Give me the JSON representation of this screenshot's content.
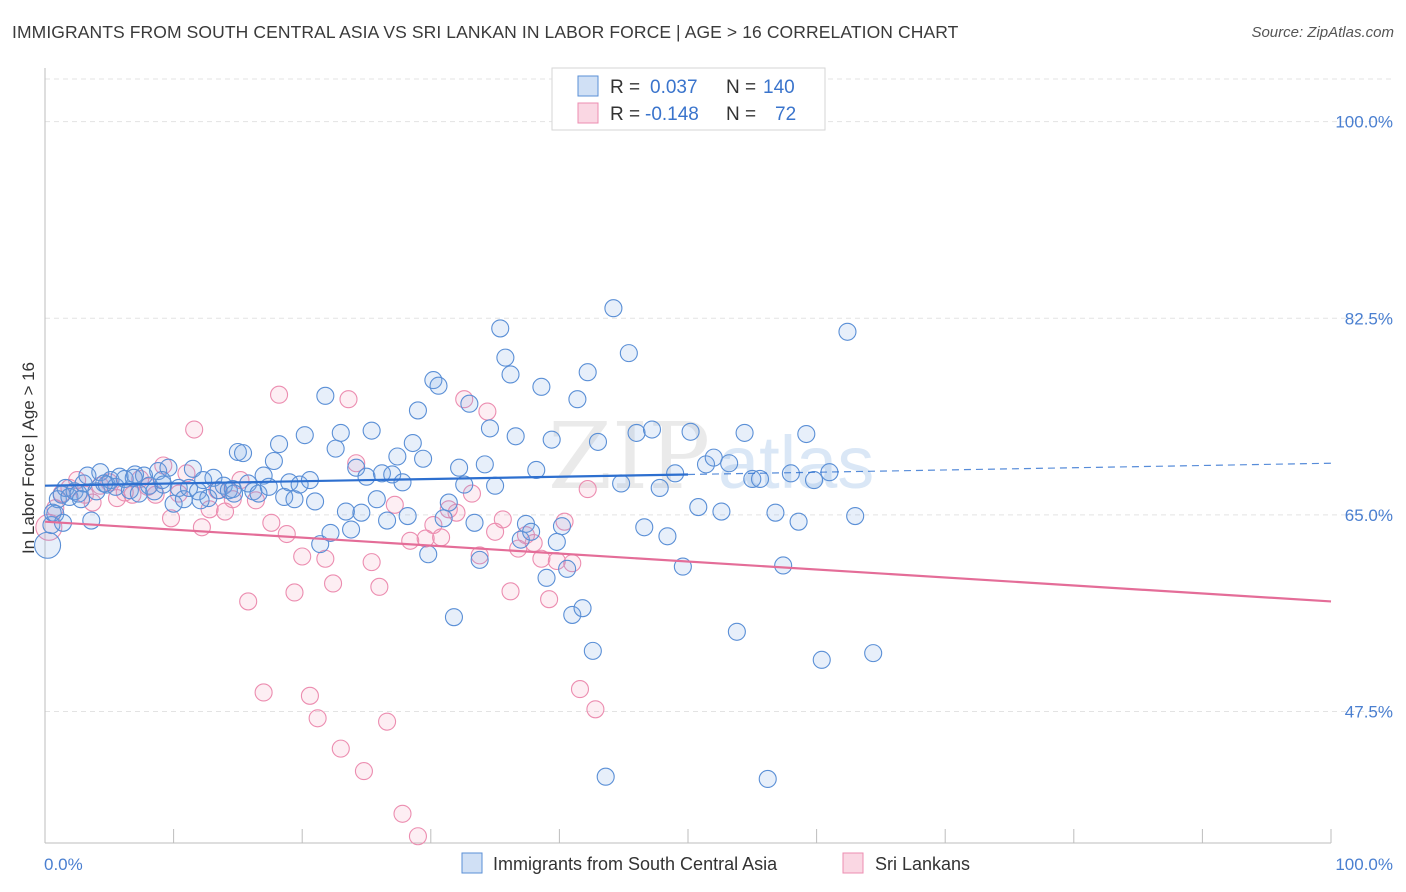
{
  "title": "IMMIGRANTS FROM SOUTH CENTRAL ASIA VS SRI LANKAN IN LABOR FORCE | AGE > 16 CORRELATION CHART",
  "source": "Source: ZipAtlas.com",
  "watermark": {
    "zip": "ZIP",
    "atlas": "atlas"
  },
  "colors": {
    "blue_fill": "rgba(120,165,225,0.18)",
    "blue_stroke": "#5a8fd6",
    "blue_line": "#2d6fcf",
    "pink_fill": "rgba(240,140,175,0.15)",
    "pink_stroke": "#ec8db0",
    "pink_line": "#e46d98",
    "tick_text": "#4a7fd0",
    "grid": "#e3e3e3"
  },
  "legend": {
    "rows": [
      {
        "r_label": "R =",
        "r_value": "0.037",
        "n_label": "N =",
        "n_value": "140",
        "color": "blue"
      },
      {
        "r_label": "R =",
        "r_value": "-0.148",
        "n_label": "N =",
        "n_value": "72",
        "color": "pink"
      }
    ]
  },
  "chart_data": {
    "type": "scatter",
    "title": "IMMIGRANTS FROM SOUTH CENTRAL ASIA VS SRI LANKAN IN LABOR FORCE | AGE > 16 CORRELATION CHART",
    "xlabel": "",
    "ylabel": "In Labor Force | Age > 16",
    "xlim": [
      0,
      100
    ],
    "ylim": [
      35.8,
      104.6
    ],
    "x_tick_labels": [
      "0.0%",
      "100.0%"
    ],
    "y_ticks": [
      47.5,
      65.0,
      82.5,
      100.0
    ],
    "y_tick_labels": [
      "47.5%",
      "65.0%",
      "82.5%",
      "100.0%"
    ],
    "grid": true,
    "legend_position": "top-center",
    "series": [
      {
        "name": "Immigrants from South Central Asia",
        "color": "blue",
        "trend": {
          "x": [
            0,
            50,
            100
          ],
          "y": [
            67.6,
            68.6,
            69.6
          ],
          "solid_until": 50
        },
        "points": [
          [
            0.2,
            62.3
          ],
          [
            0.5,
            64.1
          ],
          [
            0.8,
            65.1
          ],
          [
            1.0,
            66.4
          ],
          [
            1.3,
            66.8
          ],
          [
            1.6,
            67.4
          ],
          [
            1.9,
            66.6
          ],
          [
            2.3,
            67.1
          ],
          [
            2.6,
            66.9
          ],
          [
            3.0,
            67.8
          ],
          [
            3.3,
            68.5
          ],
          [
            3.6,
            64.5
          ],
          [
            4.0,
            67.1
          ],
          [
            4.3,
            68.8
          ],
          [
            4.8,
            67.7
          ],
          [
            5.1,
            68.1
          ],
          [
            5.5,
            67.5
          ],
          [
            5.8,
            68.4
          ],
          [
            6.2,
            68.2
          ],
          [
            6.6,
            67.2
          ],
          [
            7.0,
            68.6
          ],
          [
            7.3,
            66.9
          ],
          [
            7.7,
            68.5
          ],
          [
            8.1,
            67.6
          ],
          [
            8.5,
            67.1
          ],
          [
            8.8,
            68.9
          ],
          [
            9.2,
            67.7
          ],
          [
            9.6,
            69.2
          ],
          [
            10.0,
            66.0
          ],
          [
            10.4,
            67.4
          ],
          [
            10.8,
            66.4
          ],
          [
            11.2,
            67.4
          ],
          [
            11.5,
            69.1
          ],
          [
            11.9,
            67.1
          ],
          [
            12.3,
            68.1
          ],
          [
            12.7,
            66.5
          ],
          [
            13.1,
            68.3
          ],
          [
            13.5,
            67.2
          ],
          [
            13.9,
            67.6
          ],
          [
            14.3,
            67.2
          ],
          [
            14.6,
            67.3
          ],
          [
            15.0,
            70.6
          ],
          [
            15.4,
            70.5
          ],
          [
            15.8,
            67.8
          ],
          [
            16.2,
            67.1
          ],
          [
            16.6,
            66.9
          ],
          [
            17.0,
            68.5
          ],
          [
            17.4,
            67.5
          ],
          [
            17.8,
            69.8
          ],
          [
            18.2,
            71.3
          ],
          [
            18.6,
            66.6
          ],
          [
            19.0,
            67.9
          ],
          [
            19.4,
            66.4
          ],
          [
            19.8,
            67.7
          ],
          [
            20.2,
            72.1
          ],
          [
            20.6,
            68.1
          ],
          [
            21.0,
            66.2
          ],
          [
            21.4,
            62.4
          ],
          [
            21.8,
            75.6
          ],
          [
            22.2,
            63.4
          ],
          [
            22.6,
            70.9
          ],
          [
            23.0,
            72.3
          ],
          [
            23.4,
            65.3
          ],
          [
            23.8,
            63.7
          ],
          [
            24.2,
            69.2
          ],
          [
            24.6,
            65.2
          ],
          [
            25.0,
            68.4
          ],
          [
            25.4,
            72.5
          ],
          [
            25.8,
            66.4
          ],
          [
            26.2,
            68.7
          ],
          [
            26.6,
            64.5
          ],
          [
            27.0,
            68.6
          ],
          [
            27.4,
            70.2
          ],
          [
            27.8,
            67.9
          ],
          [
            28.2,
            64.9
          ],
          [
            28.6,
            71.4
          ],
          [
            29.0,
            74.3
          ],
          [
            29.4,
            70.0
          ],
          [
            29.8,
            61.5
          ],
          [
            30.2,
            77.0
          ],
          [
            30.6,
            76.5
          ],
          [
            31.0,
            64.7
          ],
          [
            31.4,
            66.1
          ],
          [
            31.8,
            55.9
          ],
          [
            32.2,
            69.2
          ],
          [
            32.6,
            67.7
          ],
          [
            33.0,
            74.9
          ],
          [
            33.4,
            64.3
          ],
          [
            33.8,
            61.0
          ],
          [
            34.2,
            69.5
          ],
          [
            34.6,
            72.7
          ],
          [
            35.0,
            67.6
          ],
          [
            35.4,
            81.6
          ],
          [
            35.8,
            79.0
          ],
          [
            36.2,
            77.5
          ],
          [
            36.6,
            72.0
          ],
          [
            37.0,
            62.8
          ],
          [
            37.4,
            64.2
          ],
          [
            37.8,
            63.5
          ],
          [
            38.2,
            69.0
          ],
          [
            38.6,
            76.4
          ],
          [
            39.0,
            59.4
          ],
          [
            39.4,
            71.7
          ],
          [
            39.8,
            62.6
          ],
          [
            40.2,
            64.0
          ],
          [
            40.6,
            60.2
          ],
          [
            41.0,
            56.1
          ],
          [
            41.4,
            75.3
          ],
          [
            41.8,
            56.7
          ],
          [
            42.2,
            77.7
          ],
          [
            42.6,
            52.9
          ],
          [
            43.0,
            71.5
          ],
          [
            43.6,
            41.7
          ],
          [
            44.2,
            83.4
          ],
          [
            44.8,
            67.8
          ],
          [
            45.4,
            79.4
          ],
          [
            46.0,
            72.3
          ],
          [
            46.6,
            63.9
          ],
          [
            47.2,
            72.6
          ],
          [
            47.8,
            67.4
          ],
          [
            48.4,
            63.1
          ],
          [
            49.0,
            68.7
          ],
          [
            49.6,
            60.4
          ],
          [
            50.2,
            72.4
          ],
          [
            50.8,
            65.7
          ],
          [
            51.4,
            69.5
          ],
          [
            52.0,
            70.1
          ],
          [
            52.6,
            65.3
          ],
          [
            53.2,
            69.6
          ],
          [
            53.8,
            54.6
          ],
          [
            54.4,
            72.3
          ],
          [
            55.0,
            68.2
          ],
          [
            55.6,
            68.2
          ],
          [
            56.2,
            41.5
          ],
          [
            56.8,
            65.2
          ],
          [
            57.4,
            60.5
          ],
          [
            58.0,
            68.7
          ],
          [
            58.6,
            64.4
          ],
          [
            59.2,
            72.2
          ],
          [
            59.8,
            68.1
          ],
          [
            60.4,
            52.1
          ],
          [
            61.0,
            68.8
          ],
          [
            62.4,
            81.3
          ],
          [
            63.0,
            64.9
          ],
          [
            64.4,
            52.7
          ],
          [
            0.6,
            65.2
          ],
          [
            1.4,
            64.3
          ],
          [
            2.8,
            66.4
          ],
          [
            4.6,
            67.8
          ],
          [
            6.9,
            68.3
          ],
          [
            9.1,
            68.1
          ],
          [
            12.1,
            66.3
          ],
          [
            14.7,
            66.9
          ]
        ]
      },
      {
        "name": "Sri Lankans",
        "color": "pink",
        "trend": {
          "x": [
            0,
            100
          ],
          "y": [
            64.4,
            57.3
          ],
          "solid_until": 100
        },
        "points": [
          [
            0.3,
            63.9
          ],
          [
            0.8,
            65.6
          ],
          [
            1.3,
            66.9
          ],
          [
            1.9,
            67.4
          ],
          [
            2.5,
            68.1
          ],
          [
            3.1,
            66.8
          ],
          [
            3.7,
            66.1
          ],
          [
            4.3,
            67.6
          ],
          [
            5.0,
            67.9
          ],
          [
            5.6,
            66.5
          ],
          [
            6.2,
            67.0
          ],
          [
            6.8,
            66.8
          ],
          [
            7.4,
            68.2
          ],
          [
            8.0,
            67.5
          ],
          [
            8.6,
            66.8
          ],
          [
            9.2,
            69.4
          ],
          [
            9.8,
            64.7
          ],
          [
            10.4,
            66.9
          ],
          [
            11.0,
            68.7
          ],
          [
            11.6,
            72.6
          ],
          [
            12.2,
            63.9
          ],
          [
            12.8,
            65.5
          ],
          [
            13.4,
            67.2
          ],
          [
            14.0,
            65.3
          ],
          [
            14.6,
            66.4
          ],
          [
            15.2,
            68.1
          ],
          [
            15.8,
            57.3
          ],
          [
            16.4,
            66.3
          ],
          [
            17.0,
            49.2
          ],
          [
            17.6,
            64.3
          ],
          [
            18.2,
            75.7
          ],
          [
            18.8,
            63.3
          ],
          [
            19.4,
            58.1
          ],
          [
            20.0,
            61.3
          ],
          [
            20.6,
            48.9
          ],
          [
            21.2,
            46.9
          ],
          [
            21.8,
            61.1
          ],
          [
            22.4,
            58.9
          ],
          [
            23.0,
            44.2
          ],
          [
            23.6,
            75.3
          ],
          [
            24.2,
            69.6
          ],
          [
            24.8,
            42.2
          ],
          [
            25.4,
            60.8
          ],
          [
            26.0,
            58.6
          ],
          [
            26.6,
            46.6
          ],
          [
            27.2,
            65.9
          ],
          [
            27.8,
            38.4
          ],
          [
            28.4,
            62.7
          ],
          [
            29.0,
            36.4
          ],
          [
            29.6,
            62.9
          ],
          [
            30.2,
            64.1
          ],
          [
            30.8,
            63.0
          ],
          [
            31.4,
            65.5
          ],
          [
            32.0,
            65.2
          ],
          [
            32.6,
            75.3
          ],
          [
            33.2,
            66.9
          ],
          [
            33.8,
            61.4
          ],
          [
            34.4,
            74.2
          ],
          [
            35.0,
            63.5
          ],
          [
            35.6,
            64.6
          ],
          [
            36.2,
            58.2
          ],
          [
            36.8,
            62.0
          ],
          [
            37.4,
            63.2
          ],
          [
            38.0,
            62.5
          ],
          [
            38.6,
            61.1
          ],
          [
            39.2,
            57.5
          ],
          [
            39.8,
            60.9
          ],
          [
            40.4,
            64.4
          ],
          [
            41.0,
            60.7
          ],
          [
            41.6,
            49.5
          ],
          [
            42.2,
            67.3
          ],
          [
            42.8,
            47.7
          ]
        ]
      }
    ]
  },
  "bottom_legend": [
    {
      "label": "Immigrants from South Central Asia",
      "color": "blue"
    },
    {
      "label": "Sri Lankans",
      "color": "pink"
    }
  ]
}
